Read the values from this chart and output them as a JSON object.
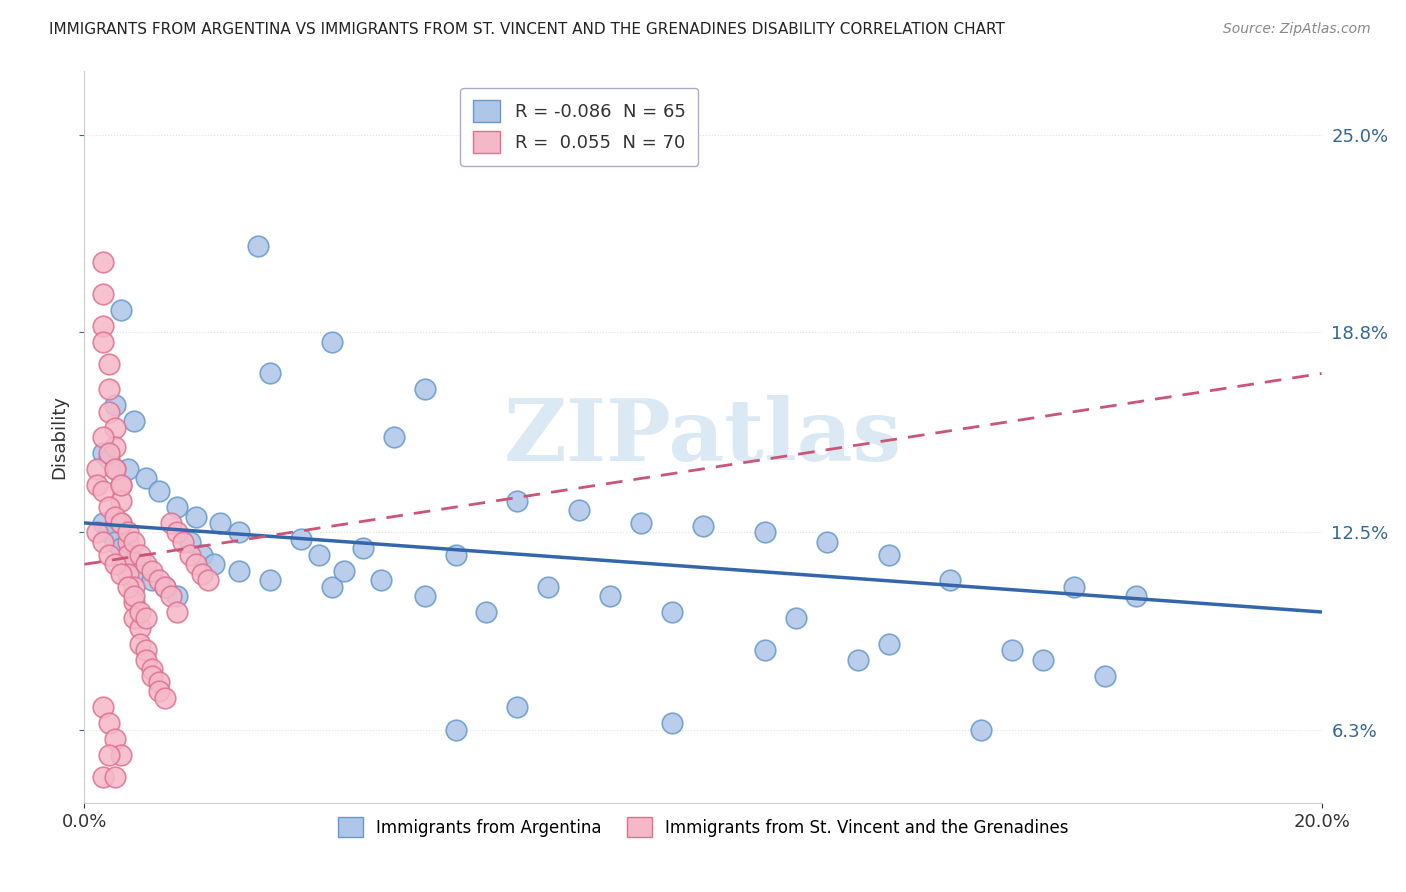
{
  "title": "IMMIGRANTS FROM ARGENTINA VS IMMIGRANTS FROM ST. VINCENT AND THE GRENADINES DISABILITY CORRELATION CHART",
  "source": "Source: ZipAtlas.com",
  "ylabel": "Disability",
  "xlim": [
    0.0,
    0.2
  ],
  "ylim": [
    0.04,
    0.27
  ],
  "yticks": [
    0.063,
    0.125,
    0.188,
    0.25
  ],
  "ytick_labels": [
    "6.3%",
    "12.5%",
    "18.8%",
    "25.0%"
  ],
  "xticks": [
    0.0,
    0.2
  ],
  "xtick_labels": [
    "0.0%",
    "20.0%"
  ],
  "argentina_color": "#aec6e8",
  "argentina_edge": "#6699cc",
  "stv_color": "#f5b8c8",
  "stv_edge": "#e07090",
  "blue_line_color": "#3366aa",
  "pink_line_color": "#cc5577",
  "pink_line_style": "--",
  "blue_line_style": "-",
  "R_argentina": -0.086,
  "N_argentina": 65,
  "R_stv": 0.055,
  "N_stv": 70,
  "watermark_text": "ZIPatlas",
  "watermark_color": "#cce0f0",
  "grid_color": "#e0e0e0",
  "grid_style": "dotted",
  "background_color": "#ffffff",
  "arg_x": [
    0.028,
    0.006,
    0.04,
    0.03,
    0.055,
    0.005,
    0.008,
    0.05,
    0.003,
    0.004,
    0.007,
    0.01,
    0.012,
    0.015,
    0.018,
    0.022,
    0.025,
    0.035,
    0.045,
    0.06,
    0.07,
    0.08,
    0.09,
    0.1,
    0.11,
    0.12,
    0.13,
    0.14,
    0.16,
    0.17,
    0.003,
    0.004,
    0.005,
    0.006,
    0.007,
    0.008,
    0.009,
    0.011,
    0.013,
    0.015,
    0.017,
    0.019,
    0.021,
    0.025,
    0.03,
    0.04,
    0.055,
    0.065,
    0.075,
    0.085,
    0.095,
    0.115,
    0.13,
    0.15,
    0.155,
    0.165,
    0.038,
    0.042,
    0.048,
    0.11,
    0.125,
    0.145,
    0.095,
    0.06,
    0.07
  ],
  "arg_y": [
    0.215,
    0.195,
    0.185,
    0.175,
    0.17,
    0.165,
    0.16,
    0.155,
    0.15,
    0.148,
    0.145,
    0.142,
    0.138,
    0.133,
    0.13,
    0.128,
    0.125,
    0.123,
    0.12,
    0.118,
    0.135,
    0.132,
    0.128,
    0.127,
    0.125,
    0.122,
    0.118,
    0.11,
    0.108,
    0.105,
    0.128,
    0.125,
    0.122,
    0.12,
    0.118,
    0.116,
    0.113,
    0.11,
    0.108,
    0.105,
    0.122,
    0.118,
    0.115,
    0.113,
    0.11,
    0.108,
    0.105,
    0.1,
    0.108,
    0.105,
    0.1,
    0.098,
    0.09,
    0.088,
    0.085,
    0.08,
    0.118,
    0.113,
    0.11,
    0.088,
    0.085,
    0.063,
    0.065,
    0.063,
    0.07
  ],
  "stv_x": [
    0.003,
    0.003,
    0.003,
    0.003,
    0.004,
    0.004,
    0.004,
    0.005,
    0.005,
    0.005,
    0.006,
    0.006,
    0.006,
    0.007,
    0.007,
    0.007,
    0.008,
    0.008,
    0.008,
    0.009,
    0.009,
    0.01,
    0.01,
    0.011,
    0.011,
    0.012,
    0.012,
    0.013,
    0.014,
    0.015,
    0.016,
    0.017,
    0.018,
    0.019,
    0.02,
    0.002,
    0.002,
    0.003,
    0.004,
    0.005,
    0.006,
    0.007,
    0.008,
    0.009,
    0.01,
    0.011,
    0.012,
    0.013,
    0.014,
    0.015,
    0.002,
    0.003,
    0.004,
    0.005,
    0.006,
    0.007,
    0.008,
    0.009,
    0.01,
    0.003,
    0.004,
    0.005,
    0.006,
    0.003,
    0.004,
    0.005,
    0.006,
    0.003,
    0.004,
    0.005
  ],
  "stv_y": [
    0.21,
    0.2,
    0.19,
    0.185,
    0.178,
    0.17,
    0.163,
    0.158,
    0.152,
    0.145,
    0.14,
    0.135,
    0.128,
    0.122,
    0.118,
    0.112,
    0.108,
    0.103,
    0.098,
    0.095,
    0.09,
    0.088,
    0.085,
    0.082,
    0.08,
    0.078,
    0.075,
    0.073,
    0.128,
    0.125,
    0.122,
    0.118,
    0.115,
    0.112,
    0.11,
    0.145,
    0.14,
    0.138,
    0.133,
    0.13,
    0.128,
    0.125,
    0.122,
    0.118,
    0.115,
    0.113,
    0.11,
    0.108,
    0.105,
    0.1,
    0.125,
    0.122,
    0.118,
    0.115,
    0.112,
    0.108,
    0.105,
    0.1,
    0.098,
    0.155,
    0.15,
    0.145,
    0.14,
    0.07,
    0.065,
    0.06,
    0.055,
    0.048,
    0.055,
    0.048
  ],
  "blue_line_x": [
    0.0,
    0.2
  ],
  "blue_line_y": [
    0.128,
    0.1
  ],
  "pink_line_x": [
    0.0,
    0.2
  ],
  "pink_line_y": [
    0.115,
    0.175
  ]
}
